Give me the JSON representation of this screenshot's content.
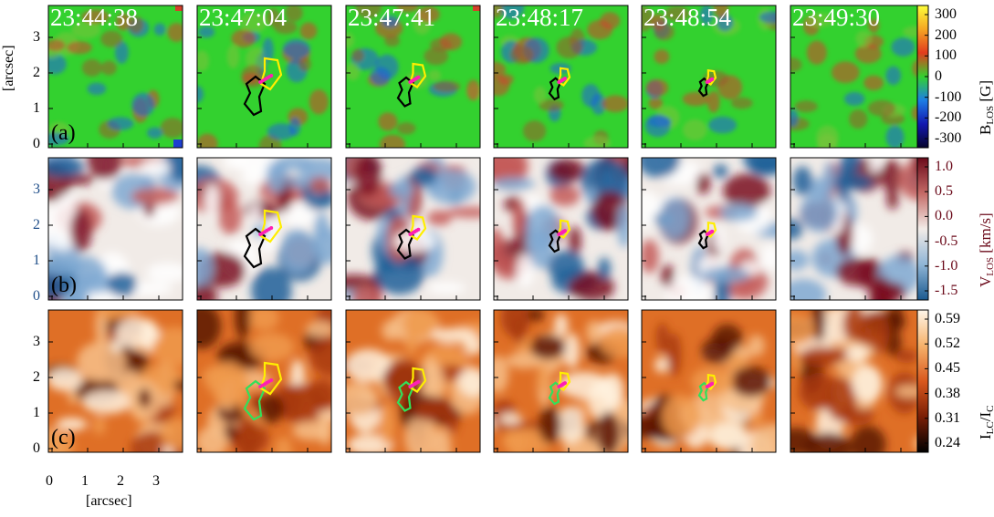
{
  "timestamps": [
    "23:44:38",
    "23:47:04",
    "23:47:41",
    "23:48:17",
    "23:48:54",
    "23:49:30"
  ],
  "rows": [
    {
      "label": "(a)",
      "colorbar": {
        "title_main": "B",
        "title_sub": "LOS",
        "title_unit": " [G]",
        "ticks": [
          "300",
          "200",
          "100",
          "0",
          "-100",
          "-200",
          "-300"
        ],
        "colors": [
          "#fdfe3a",
          "#f5a623",
          "#e23b1d",
          "#33d12f",
          "#1d7ee5",
          "#1217b0",
          "#05032c"
        ],
        "tick_color": "#000000"
      },
      "yticks": [
        "3",
        "2",
        "1",
        "0"
      ],
      "ytick_color": "#000000"
    },
    {
      "label": "(b)",
      "colorbar": {
        "title_main": "V",
        "title_sub": "LOS",
        "title_unit": " [km/s]",
        "ticks": [
          "1.0",
          "0.5",
          "0.0",
          "-0.5",
          "-1.0",
          "-1.5"
        ],
        "colors": [
          "#6b0a1a",
          "#c46a66",
          "#f3ece8",
          "#8fb5d6",
          "#1b5a8f"
        ],
        "tick_color": "#6b0a1a"
      },
      "yticks": [
        "3",
        "2",
        "1",
        "0"
      ],
      "ytick_color": "#1f4e89"
    },
    {
      "label": "(c)",
      "colorbar": {
        "title_main": "I",
        "title_sub": "LC",
        "title_mid": "/I",
        "title_sub2": "C",
        "ticks": [
          "0.59",
          "0.52",
          "0.45",
          "0.38",
          "0.31",
          "0.24"
        ],
        "colors": [
          "#fff6e9",
          "#f6b26b",
          "#d9581d",
          "#7a1f06",
          "#000000"
        ],
        "tick_color": "#000000"
      },
      "yticks": [
        "3",
        "2",
        "1",
        "0"
      ],
      "ytick_color": "#000000"
    }
  ],
  "yaxis_label": "[arcsec]",
  "xaxis_label": "[arcsec]",
  "xticks": [
    "0",
    "1",
    "2",
    "3"
  ],
  "contour_colors": {
    "positive": "#000000",
    "negative": "#ffee00",
    "pil": "#ff1fb4",
    "positive_row_c": "#31e05a"
  },
  "panel_colors": {
    "b_base": "#33d12f",
    "v_base": "#f1ebe7",
    "i_base": "#df6f26"
  }
}
